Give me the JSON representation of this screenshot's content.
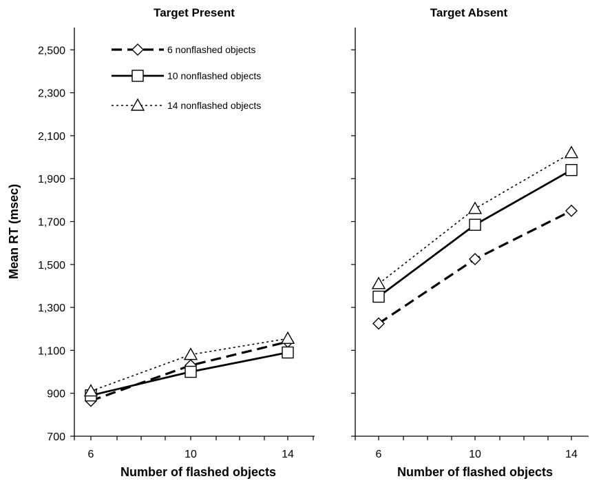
{
  "chart_data": [
    {
      "type": "line",
      "title": "Target Present",
      "xlabel": "Number of flashed objects",
      "ylabel": "Mean RT (msec)",
      "x": [
        6,
        10,
        14
      ],
      "xlim": [
        5,
        16
      ],
      "ylim": [
        700,
        2600
      ],
      "yticks": [
        "700",
        "900",
        "1,100",
        "1,300",
        "1,500",
        "1,700",
        "1,900",
        "2,100",
        "2,300",
        "2,500"
      ],
      "xticks": [
        "6",
        "10",
        "14"
      ],
      "legend_position": "top",
      "grid": false,
      "series": [
        {
          "name": "6 nonflashed objects",
          "values": [
            865,
            1030,
            1140
          ],
          "marker": "diamond",
          "line": "dashed"
        },
        {
          "name": "10 nonflashed objects",
          "values": [
            890,
            1000,
            1090
          ],
          "marker": "square",
          "line": "solid"
        },
        {
          "name": "14 nonflashed objects",
          "values": [
            910,
            1080,
            1155
          ],
          "marker": "triangle",
          "line": "dotted"
        }
      ]
    },
    {
      "type": "line",
      "title": "Target Absent",
      "xlabel": "Number of flashed objects",
      "x": [
        6,
        10,
        14
      ],
      "xlim": [
        5,
        16
      ],
      "ylim": [
        700,
        2600
      ],
      "xticks": [
        "6",
        "10",
        "14"
      ],
      "grid": false,
      "series": [
        {
          "name": "6 nonflashed objects",
          "values": [
            1225,
            1525,
            1750
          ],
          "marker": "diamond",
          "line": "dashed"
        },
        {
          "name": "10 nonflashed objects",
          "values": [
            1350,
            1685,
            1940
          ],
          "marker": "square",
          "line": "solid"
        },
        {
          "name": "14 nonflashed objects",
          "values": [
            1410,
            1760,
            2020
          ],
          "marker": "triangle",
          "line": "dotted"
        }
      ]
    }
  ]
}
